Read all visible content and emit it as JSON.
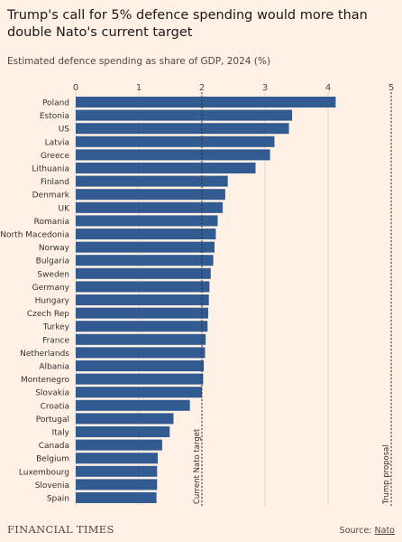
{
  "header": {
    "title": "Trump's call for 5% defence spending would more than double Nato's current target",
    "subtitle": "Estimated defence spending as share of GDP, 2024 (%)"
  },
  "footer": {
    "brand": "FINANCIAL TIMES",
    "source_prefix": "Source: ",
    "source_link": "Nato"
  },
  "colors": {
    "bar": "#325b91",
    "background": "#fff1e5",
    "reference_line": "#33302e",
    "gridline": "#e3d6c9"
  },
  "chart_data": {
    "type": "bar",
    "orientation": "horizontal",
    "title": "Trump's call for 5% defence spending would more than double Nato's current target",
    "subtitle": "Estimated defence spending as share of GDP, 2024 (%)",
    "xlim": [
      0,
      5
    ],
    "xticks": [
      0,
      1,
      2,
      3,
      4,
      5
    ],
    "xtick_labels": [
      "0",
      "1",
      "2",
      "3",
      "4",
      "5"
    ],
    "grid": true,
    "categories": [
      "Poland",
      "Estonia",
      "US",
      "Latvia",
      "Greece",
      "Lithuania",
      "Finland",
      "Denmark",
      "UK",
      "Romania",
      "North Macedonia",
      "Norway",
      "Bulgaria",
      "Sweden",
      "Germany",
      "Hungary",
      "Czech Rep",
      "Turkey",
      "France",
      "Netherlands",
      "Albania",
      "Montenegro",
      "Slovakia",
      "Croatia",
      "Portugal",
      "Italy",
      "Canada",
      "Belgium",
      "Luxembourg",
      "Slovenia",
      "Spain"
    ],
    "values": [
      4.12,
      3.43,
      3.38,
      3.15,
      3.08,
      2.85,
      2.41,
      2.37,
      2.33,
      2.25,
      2.22,
      2.2,
      2.18,
      2.14,
      2.12,
      2.11,
      2.1,
      2.09,
      2.06,
      2.05,
      2.03,
      2.02,
      2.0,
      1.81,
      1.55,
      1.49,
      1.37,
      1.3,
      1.29,
      1.29,
      1.28
    ],
    "reference_lines": [
      {
        "value": 2,
        "label": "Current Nato target"
      },
      {
        "value": 5,
        "label": "Trump proposal"
      }
    ]
  }
}
